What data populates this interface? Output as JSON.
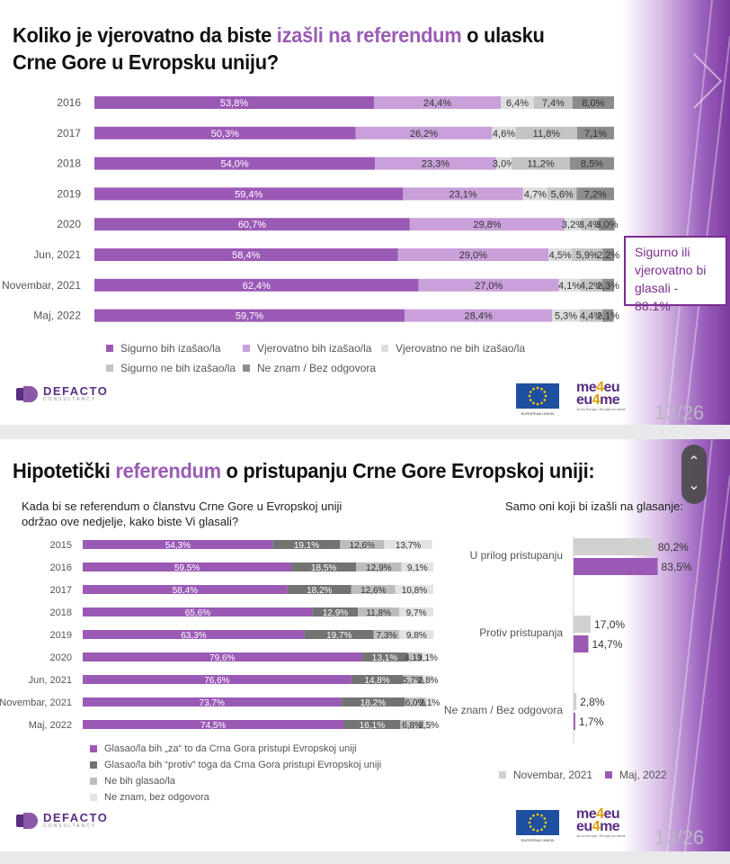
{
  "slide1": {
    "title_part1": "Koliko je vjerovatno da biste ",
    "title_highlight": "izašli na referendum",
    "title_part2": " o ulasku",
    "title_line2": "Crne Gore u Evropsku uniju?",
    "callout": "Sigurno ili vjerovatno bi glasali - 88.1%",
    "page_number": "12/26"
  },
  "slide2": {
    "title_part1": "Hipotetički ",
    "title_highlight": "referendum",
    "title_part2": " o pristupanju Crne Gore Evropskoj uniji:",
    "subtitle_left_line1": "Kada bi se referendum o članstvu Crne Gore u Evropskoj uniji",
    "subtitle_left_line2": "održao ove nedjelje, kako biste Vi glasali?",
    "subtitle_right": "Samo oni koji bi izašli na glasanje:",
    "page_number": "13/26"
  },
  "footer": {
    "defacto_name": "DEFACTO",
    "defacto_sub": "CONSULTANCY",
    "eu_caption": "EUROPEAN UNION",
    "me4eu_line1": "me4eu",
    "me4eu_line2": "eu4me",
    "me4eu_tagline": "Ja za Evropu, Evropa za mene"
  },
  "colors": {
    "dark_purple": "#9b59b6",
    "light_purple": "#c9a0d9",
    "light_gray": "#d4d4d4",
    "mid_gray": "#bdbdbd",
    "dark_gray": "#7f7f7f",
    "callout_border": "#7b2d8e"
  },
  "chart_data": [
    {
      "type": "bar",
      "orientation": "horizontal",
      "stacked": true,
      "categories": [
        "2016",
        "2017",
        "2018",
        "2019",
        "2020",
        "Jun, 2021",
        "Novembar, 2021",
        "Maj, 2022"
      ],
      "series": [
        {
          "name": "Sigurno bih izašao/la",
          "color": "#9b59b6",
          "values": [
            53.8,
            50.3,
            54.0,
            59.4,
            60.7,
            58.4,
            62.4,
            59.7
          ]
        },
        {
          "name": "Vjerovatno bih izašao/la",
          "color": "#c9a0d9",
          "values": [
            24.4,
            26.2,
            23.3,
            23.1,
            29.8,
            29.0,
            27.0,
            28.4
          ]
        },
        {
          "name": "Vjerovatno ne bih izašao/la",
          "color": "#dedede",
          "values": [
            6.4,
            4.6,
            3.0,
            4.7,
            3.2,
            4.5,
            4.1,
            5.3
          ]
        },
        {
          "name": "Sigurno ne bih izašao/la",
          "color": "#c4c4c4",
          "values": [
            7.4,
            11.8,
            11.2,
            5.6,
            3.4,
            5.9,
            4.2,
            4.4
          ]
        },
        {
          "name": "Ne znam / Bez odgovora",
          "color": "#8c8c8c",
          "values": [
            8.0,
            7.1,
            8.5,
            7.2,
            3.0,
            2.2,
            2.3,
            2.1
          ]
        }
      ],
      "labels": [
        [
          "53,8%",
          "24,4%",
          "6,4%",
          "7,4%",
          "8,0%"
        ],
        [
          "50,3%",
          "26,2%",
          "4,6%",
          "11,8%",
          "7,1%"
        ],
        [
          "54,0%",
          "23,3%",
          "3,0%",
          "11,2%",
          "8,5%"
        ],
        [
          "59,4%",
          "23,1%",
          "4,7%",
          "5,6%",
          "7,2%"
        ],
        [
          "60,7%",
          "29,8%",
          "3,2%",
          "3,4%",
          "3,0%"
        ],
        [
          "58,4%",
          "29,0%",
          "4,5%",
          "5,9%",
          "2,2%"
        ],
        [
          "62,4%",
          "27,0%",
          "4,1%",
          "4,2%",
          "2,3%"
        ],
        [
          "59,7%",
          "28,4%",
          "5,3%",
          "4,4%",
          "2,1%"
        ]
      ],
      "xlim": [
        0,
        100
      ]
    },
    {
      "type": "bar",
      "orientation": "horizontal",
      "stacked": true,
      "categories": [
        "2015",
        "2016",
        "2017",
        "2018",
        "2019",
        "2020",
        "Jun, 2021",
        "Novembar, 2021",
        "Maj, 2022"
      ],
      "series": [
        {
          "name": "Glasao/la bih „za“ to da Crna Gora pristupi Evropskoj uniji",
          "color": "#9b59b6",
          "values": [
            54.3,
            59.5,
            58.4,
            65.6,
            63.3,
            79.6,
            76.6,
            73.7,
            74.5
          ]
        },
        {
          "name": "Glasao/la bih “protiv” toga da Crna Gora pristupi Evropskoj uniji",
          "color": "#737373",
          "values": [
            19.1,
            18.5,
            18.2,
            12.9,
            19.7,
            13.1,
            14.8,
            18.2,
            16.1
          ]
        },
        {
          "name": "Ne bih glasao/la",
          "color": "#bdbdbd",
          "values": [
            12.6,
            12.9,
            12.6,
            11.8,
            7.3,
            4.1,
            5.7,
            6.0,
            6.8
          ]
        },
        {
          "name": "Ne znam, bez odgovora",
          "color": "#e3e3e3",
          "values": [
            13.7,
            9.1,
            10.8,
            9.7,
            9.8,
            3.1,
            2.8,
            2.1,
            2.5
          ]
        }
      ],
      "labels": [
        [
          "54,3%",
          "19,1%",
          "12,6%",
          "13,7%"
        ],
        [
          "59,5%",
          "18,5%",
          "12,9%",
          "9,1%"
        ],
        [
          "58,4%",
          "18,2%",
          "12,6%",
          "10,8%"
        ],
        [
          "65,6%",
          "12,9%",
          "11,8%",
          "9,7%"
        ],
        [
          "63,3%",
          "19,7%",
          "7,3%",
          "9,8%"
        ],
        [
          "79,6%",
          "13,1%",
          "4,1%",
          "3,1%"
        ],
        [
          "76,6%",
          "14,8%",
          "5,7%",
          "2,8%"
        ],
        [
          "73,7%",
          "18,2%",
          "6,0%",
          "2,1%"
        ],
        [
          "74,5%",
          "16,1%",
          "6,8%",
          "2,5%"
        ]
      ],
      "xlim": [
        0,
        100
      ]
    },
    {
      "type": "bar",
      "orientation": "horizontal",
      "categories": [
        "U prilog pristupanju",
        "Protiv pristupanja",
        "Ne znam / Bez odgovora"
      ],
      "series": [
        {
          "name": "Novembar, 2021",
          "color": "#d0d0d0",
          "values": [
            80.2,
            17.0,
            2.8
          ],
          "labels": [
            "80,2%",
            "17,0%",
            "2,8%"
          ]
        },
        {
          "name": "Maj, 2022",
          "color": "#9b59b6",
          "values": [
            83.5,
            14.7,
            1.7
          ],
          "labels": [
            "83,5%",
            "14,7%",
            "1,7%"
          ]
        }
      ],
      "xlim": [
        0,
        100
      ]
    }
  ]
}
